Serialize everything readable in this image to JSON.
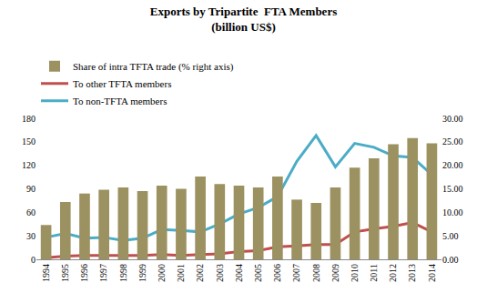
{
  "chart_data": {
    "type": "bar_line",
    "title": "Exports by Tripartite  FTA Members",
    "subtitle": "(billion US$)",
    "categories": [
      "1994",
      "1995",
      "1996",
      "1997",
      "1998",
      "1999",
      "2000",
      "2001",
      "2002",
      "2003",
      "2004",
      "2005",
      "2006",
      "2007",
      "2008",
      "2009",
      "2010",
      "2011",
      "2012",
      "2013",
      "2014"
    ],
    "series": [
      {
        "name": "Share of intra TFTA trade (% right axis)",
        "type": "bar",
        "axis": "y2",
        "color": "#9c9160",
        "values": [
          7.3,
          12.2,
          14.0,
          14.8,
          15.3,
          14.5,
          15.7,
          15.0,
          17.6,
          16.0,
          15.7,
          15.3,
          17.6,
          12.7,
          12.0,
          15.3,
          19.5,
          21.5,
          24.5,
          25.8,
          24.7
        ]
      },
      {
        "name": "To other TFTA members",
        "type": "line",
        "color": "#c0504d",
        "values": [
          2,
          4,
          5,
          5,
          5,
          5,
          6,
          5,
          6,
          7,
          10,
          11,
          16,
          17,
          19,
          19,
          35,
          39,
          42,
          47,
          35
        ]
      },
      {
        "name": "To non-TFTA members",
        "type": "line",
        "color": "#4bacc6",
        "values": [
          28,
          33,
          27,
          28,
          24,
          27,
          38,
          37,
          35,
          45,
          58,
          66,
          80,
          125,
          158,
          118,
          148,
          143,
          132,
          130,
          108
        ]
      }
    ],
    "ylim": [
      0,
      180
    ],
    "yticks": [
      0,
      30,
      60,
      90,
      120,
      150,
      180
    ],
    "y2lim": [
      0,
      30
    ],
    "y2ticks": [
      {
        "value": 0,
        "label": "0.00"
      },
      {
        "value": 5,
        "label": "5.00"
      },
      {
        "value": 10,
        "label": "10.00"
      },
      {
        "value": 15,
        "label": "15.00"
      },
      {
        "value": 20,
        "label": "20.00"
      },
      {
        "value": 25,
        "label": "25.00"
      },
      {
        "value": 30,
        "label": "30.00"
      }
    ],
    "grid": false,
    "legend": "top-left"
  }
}
